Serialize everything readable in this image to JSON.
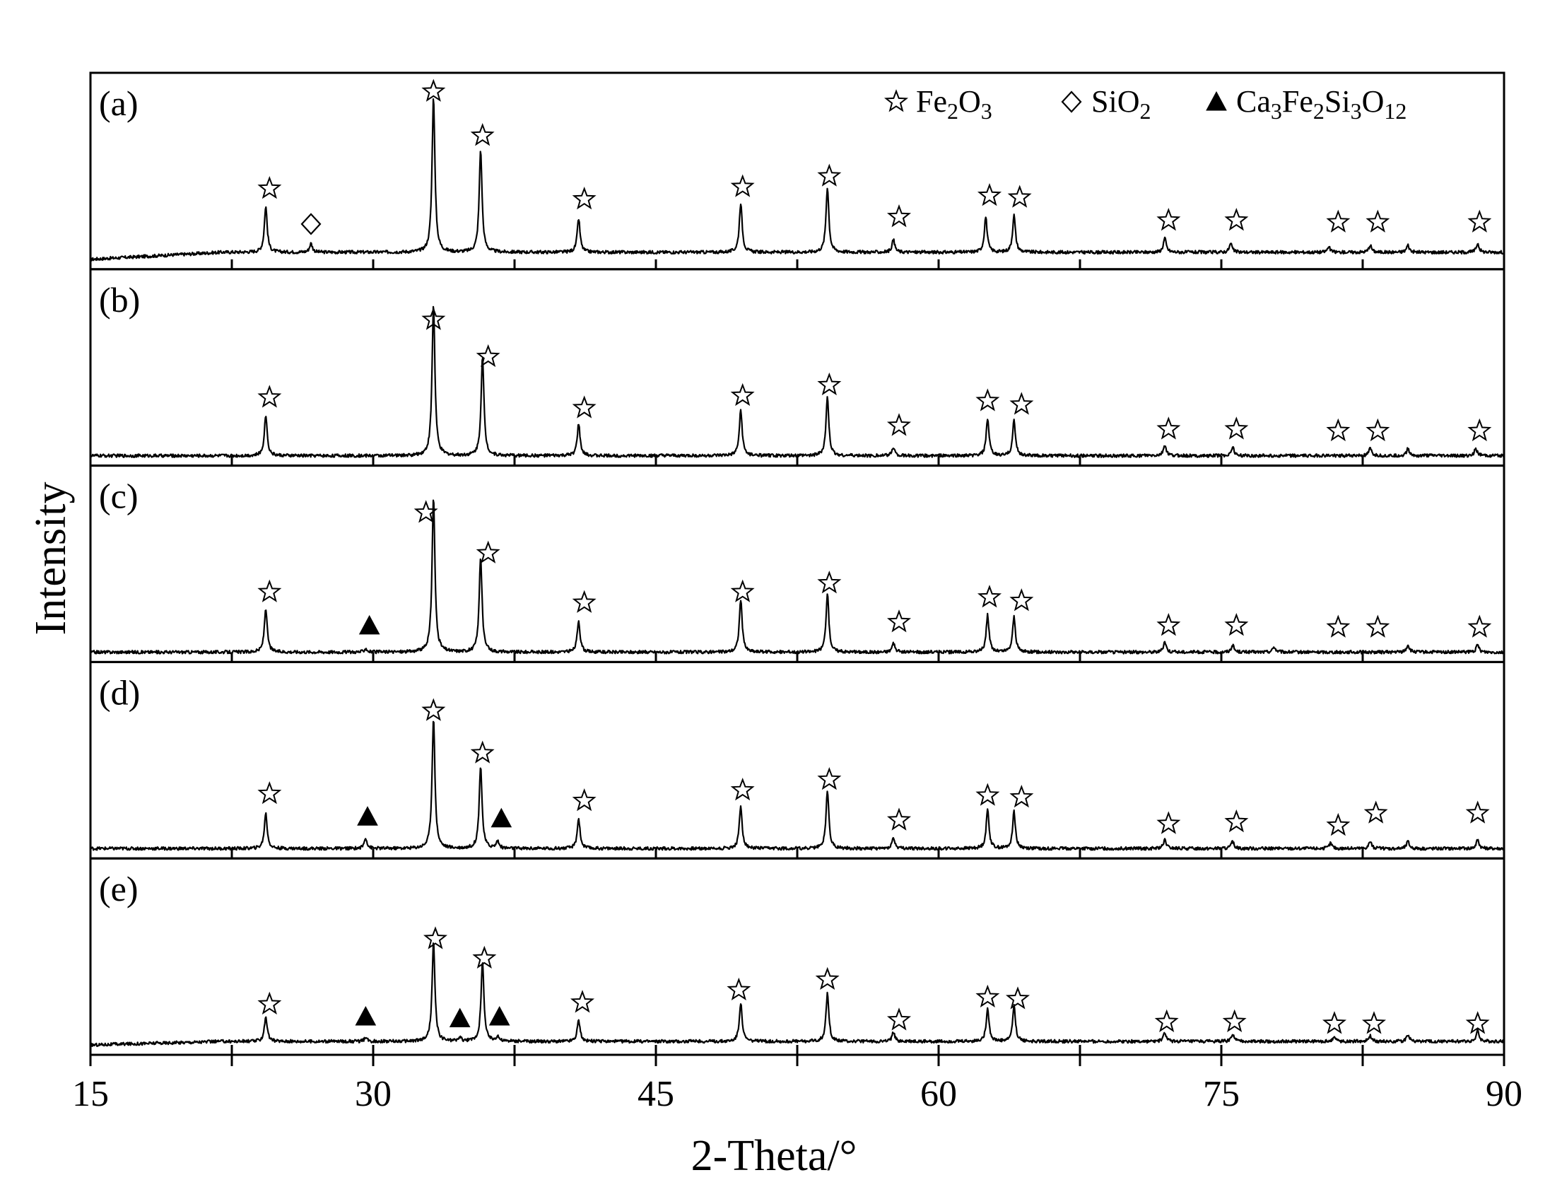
{
  "chart_data": {
    "type": "line",
    "xlabel": "2-Theta/°",
    "ylabel": "Intensity",
    "xlim": [
      15,
      90
    ],
    "x_ticks": [
      "15",
      "30",
      "45",
      "60",
      "75",
      "90"
    ],
    "x_minor_step": 7.5,
    "legend": {
      "position": "top-right",
      "entries": [
        {
          "marker": "star",
          "base": "Fe",
          "parts": [
            [
              "Fe",
              ""
            ],
            [
              "2",
              "sub"
            ],
            [
              "O",
              ""
            ],
            [
              "3",
              "sub"
            ]
          ]
        },
        {
          "marker": "diamond",
          "parts": [
            [
              "SiO",
              ""
            ],
            [
              "2",
              "sub"
            ]
          ]
        },
        {
          "marker": "triangle",
          "parts": [
            [
              "Ca",
              ""
            ],
            [
              "3",
              "sub"
            ],
            [
              "Fe",
              ""
            ],
            [
              "2",
              "sub"
            ],
            [
              "Si",
              ""
            ],
            [
              "3",
              "sub"
            ],
            [
              "O",
              ""
            ],
            [
              "12",
              "sub"
            ]
          ]
        }
      ]
    },
    "panels": [
      {
        "label": "(a)",
        "baseline_rise": 0.04,
        "peaks": [
          [
            24.3,
            0.26
          ],
          [
            26.7,
            0.05
          ],
          [
            33.2,
            0.88
          ],
          [
            35.7,
            0.58
          ],
          [
            40.9,
            0.19
          ],
          [
            49.5,
            0.28
          ],
          [
            54.1,
            0.37
          ],
          [
            57.6,
            0.07
          ],
          [
            62.5,
            0.2
          ],
          [
            64.0,
            0.21
          ],
          [
            72.0,
            0.08
          ],
          [
            75.5,
            0.05
          ],
          [
            80.7,
            0.03
          ],
          [
            82.9,
            0.04
          ],
          [
            84.9,
            0.04
          ],
          [
            88.6,
            0.05
          ]
        ],
        "markers": [
          [
            "star",
            24.5,
            0.4
          ],
          [
            "diamond",
            26.7,
            0.2
          ],
          [
            "star",
            33.2,
            0.95
          ],
          [
            "star",
            35.8,
            0.7
          ],
          [
            "star",
            41.2,
            0.34
          ],
          [
            "star",
            49.6,
            0.41
          ],
          [
            "star",
            54.2,
            0.47
          ],
          [
            "star",
            57.9,
            0.24
          ],
          [
            "star",
            62.7,
            0.36
          ],
          [
            "star",
            64.3,
            0.35
          ],
          [
            "star",
            72.2,
            0.22
          ],
          [
            "star",
            75.8,
            0.22
          ],
          [
            "star",
            81.2,
            0.21
          ],
          [
            "star",
            83.3,
            0.21
          ],
          [
            "star",
            88.7,
            0.21
          ]
        ]
      },
      {
        "label": "(b)",
        "baseline_rise": 0,
        "peaks": [
          [
            24.3,
            0.23
          ],
          [
            33.2,
            0.86
          ],
          [
            35.8,
            0.56
          ],
          [
            40.9,
            0.18
          ],
          [
            49.5,
            0.26
          ],
          [
            54.1,
            0.33
          ],
          [
            57.6,
            0.05
          ],
          [
            62.6,
            0.21
          ],
          [
            64.0,
            0.2
          ],
          [
            72.0,
            0.06
          ],
          [
            75.6,
            0.05
          ],
          [
            82.9,
            0.04
          ],
          [
            84.9,
            0.04
          ],
          [
            88.5,
            0.04
          ]
        ],
        "markers": [
          [
            "star",
            24.5,
            0.33
          ],
          [
            "star",
            33.2,
            0.77
          ],
          [
            "star",
            36.1,
            0.56
          ],
          [
            "star",
            41.2,
            0.27
          ],
          [
            "star",
            49.6,
            0.34
          ],
          [
            "star",
            54.2,
            0.4
          ],
          [
            "star",
            57.9,
            0.17
          ],
          [
            "star",
            62.6,
            0.31
          ],
          [
            "star",
            64.4,
            0.29
          ],
          [
            "star",
            72.2,
            0.15
          ],
          [
            "star",
            75.8,
            0.15
          ],
          [
            "star",
            81.2,
            0.14
          ],
          [
            "star",
            83.3,
            0.14
          ],
          [
            "star",
            88.7,
            0.14
          ]
        ]
      },
      {
        "label": "(c)",
        "baseline_rise": 0,
        "peaks": [
          [
            24.3,
            0.25
          ],
          [
            29.6,
            0.02
          ],
          [
            33.2,
            0.88
          ],
          [
            35.7,
            0.54
          ],
          [
            40.9,
            0.18
          ],
          [
            49.5,
            0.3
          ],
          [
            54.1,
            0.33
          ],
          [
            57.6,
            0.05
          ],
          [
            62.6,
            0.21
          ],
          [
            64.0,
            0.2
          ],
          [
            72.0,
            0.06
          ],
          [
            75.6,
            0.04
          ],
          [
            77.8,
            0.03
          ],
          [
            84.9,
            0.04
          ],
          [
            88.6,
            0.04
          ]
        ],
        "markers": [
          [
            "star",
            24.5,
            0.34
          ],
          [
            "triangle",
            29.8,
            0.15
          ],
          [
            "star",
            32.8,
            0.79
          ],
          [
            "star",
            36.1,
            0.56
          ],
          [
            "star",
            41.2,
            0.28
          ],
          [
            "star",
            49.6,
            0.34
          ],
          [
            "star",
            54.2,
            0.39
          ],
          [
            "star",
            57.9,
            0.17
          ],
          [
            "star",
            62.7,
            0.31
          ],
          [
            "star",
            64.4,
            0.29
          ],
          [
            "star",
            72.2,
            0.15
          ],
          [
            "star",
            75.8,
            0.15
          ],
          [
            "star",
            81.2,
            0.14
          ],
          [
            "star",
            83.3,
            0.14
          ],
          [
            "star",
            88.7,
            0.14
          ]
        ]
      },
      {
        "label": "(d)",
        "baseline_rise": 0,
        "peaks": [
          [
            24.3,
            0.2
          ],
          [
            29.6,
            0.06
          ],
          [
            33.2,
            0.74
          ],
          [
            35.7,
            0.47
          ],
          [
            36.6,
            0.04
          ],
          [
            40.9,
            0.17
          ],
          [
            49.5,
            0.24
          ],
          [
            54.1,
            0.33
          ],
          [
            57.6,
            0.06
          ],
          [
            62.6,
            0.22
          ],
          [
            64.0,
            0.21
          ],
          [
            72.0,
            0.05
          ],
          [
            75.6,
            0.04
          ],
          [
            80.8,
            0.03
          ],
          [
            82.9,
            0.04
          ],
          [
            84.9,
            0.04
          ],
          [
            88.6,
            0.05
          ]
        ],
        "markers": [
          [
            "star",
            24.5,
            0.31
          ],
          [
            "triangle",
            29.7,
            0.18
          ],
          [
            "star",
            33.2,
            0.78
          ],
          [
            "star",
            35.8,
            0.54
          ],
          [
            "triangle",
            36.8,
            0.17
          ],
          [
            "star",
            41.2,
            0.27
          ],
          [
            "star",
            49.6,
            0.33
          ],
          [
            "star",
            54.2,
            0.39
          ],
          [
            "star",
            57.9,
            0.16
          ],
          [
            "star",
            62.6,
            0.3
          ],
          [
            "star",
            64.4,
            0.29
          ],
          [
            "star",
            72.2,
            0.14
          ],
          [
            "star",
            75.8,
            0.15
          ],
          [
            "star",
            81.2,
            0.13
          ],
          [
            "star",
            83.2,
            0.2
          ],
          [
            "star",
            88.6,
            0.2
          ]
        ]
      },
      {
        "label": "(e)",
        "baseline_rise": 0.02,
        "peaks": [
          [
            24.3,
            0.14
          ],
          [
            29.6,
            0.02
          ],
          [
            33.2,
            0.56
          ],
          [
            34.6,
            0.02
          ],
          [
            35.8,
            0.45
          ],
          [
            36.6,
            0.03
          ],
          [
            40.9,
            0.12
          ],
          [
            49.5,
            0.22
          ],
          [
            54.1,
            0.27
          ],
          [
            57.6,
            0.05
          ],
          [
            62.6,
            0.19
          ],
          [
            64.0,
            0.2
          ],
          [
            72.0,
            0.05
          ],
          [
            75.6,
            0.04
          ],
          [
            81.0,
            0.03
          ],
          [
            82.9,
            0.03
          ],
          [
            84.9,
            0.04
          ],
          [
            88.6,
            0.06
          ]
        ],
        "markers": [
          [
            "star",
            24.5,
            0.23
          ],
          [
            "triangle",
            29.6,
            0.16
          ],
          [
            "star",
            33.3,
            0.6
          ],
          [
            "triangle",
            34.6,
            0.15
          ],
          [
            "star",
            35.9,
            0.49
          ],
          [
            "triangle",
            36.7,
            0.16
          ],
          [
            "star",
            41.1,
            0.24
          ],
          [
            "star",
            49.4,
            0.31
          ],
          [
            "star",
            54.1,
            0.37
          ],
          [
            "star",
            57.9,
            0.14
          ],
          [
            "star",
            62.6,
            0.27
          ],
          [
            "star",
            64.2,
            0.26
          ],
          [
            "star",
            72.1,
            0.13
          ],
          [
            "star",
            75.7,
            0.13
          ],
          [
            "star",
            81.0,
            0.12
          ],
          [
            "star",
            83.1,
            0.12
          ],
          [
            "star",
            88.6,
            0.12
          ]
        ]
      }
    ]
  }
}
